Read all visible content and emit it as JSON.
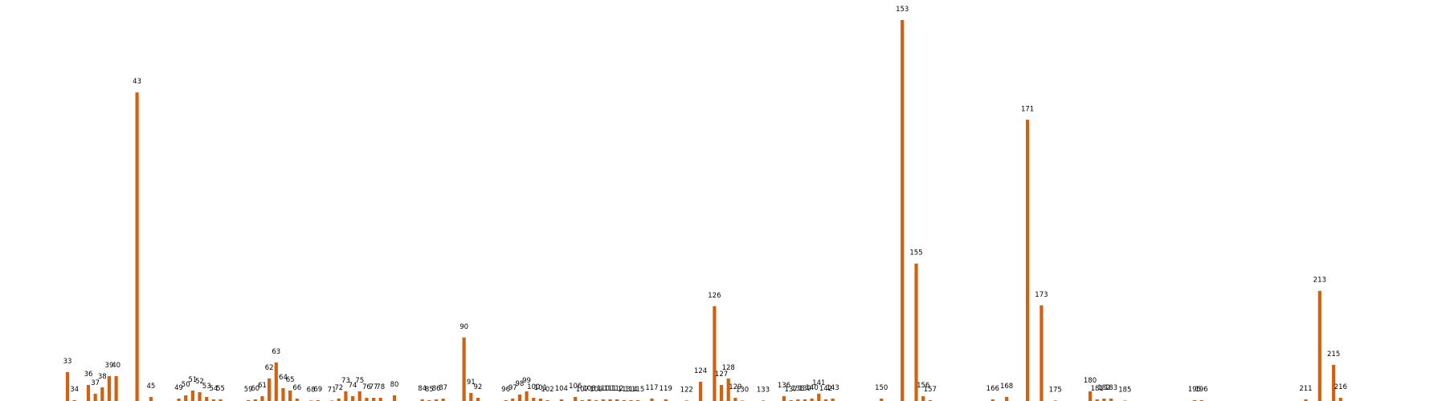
{
  "chart_data": {
    "type": "bar",
    "title": "",
    "xlabel": "",
    "ylabel": "",
    "grid": false,
    "legend": "none",
    "bar_color": "#d2600e",
    "ylim": [
      0,
      475
    ],
    "categories": [
      "33",
      "34",
      "36",
      "37",
      "38",
      "39",
      "40",
      "43",
      "45",
      "49",
      "50",
      "51",
      "52",
      "53",
      "54",
      "55",
      "59",
      "60",
      "61",
      "62",
      "63",
      "64",
      "65",
      "66",
      "68",
      "69",
      "71",
      "72",
      "73",
      "74",
      "75",
      "76",
      "77",
      "78",
      "80",
      "84",
      "85",
      "86",
      "87",
      "90",
      "91",
      "92",
      "96",
      "97",
      "98",
      "99",
      "100",
      "101",
      "102",
      "104",
      "106",
      "107",
      "108",
      "109",
      "110",
      "111",
      "112",
      "113",
      "114",
      "115",
      "117",
      "119",
      "122",
      "124",
      "126",
      "127",
      "128",
      "129",
      "130",
      "133",
      "136",
      "137",
      "138",
      "139",
      "140",
      "141",
      "142",
      "143",
      "150",
      "153",
      "155",
      "156",
      "157",
      "166",
      "168",
      "171",
      "173",
      "175",
      "180",
      "181",
      "182",
      "183",
      "185",
      "195",
      "196",
      "211",
      "213",
      "215",
      "216"
    ],
    "values": [
      36,
      1,
      20,
      9,
      17,
      31,
      31,
      384,
      5,
      3,
      7,
      13,
      11,
      5,
      2,
      2,
      1,
      2,
      6,
      28,
      48,
      16,
      13,
      3,
      0.5,
      1,
      0.5,
      3,
      12,
      6,
      12,
      4,
      4,
      4,
      7,
      2,
      1,
      2,
      3,
      79,
      10,
      4,
      1,
      3,
      8,
      12,
      4,
      3,
      1,
      2,
      5,
      1,
      2,
      1,
      2,
      2,
      2,
      1,
      1,
      1,
      3,
      2,
      0.5,
      24,
      118,
      20,
      28,
      4,
      0.5,
      0.5,
      6,
      1,
      2,
      2,
      3,
      9,
      2,
      3,
      3,
      474,
      171,
      6,
      1,
      2,
      5,
      350,
      119,
      0.5,
      12,
      2,
      3,
      3,
      0.5,
      1,
      1,
      2,
      137,
      45,
      4
    ]
  }
}
